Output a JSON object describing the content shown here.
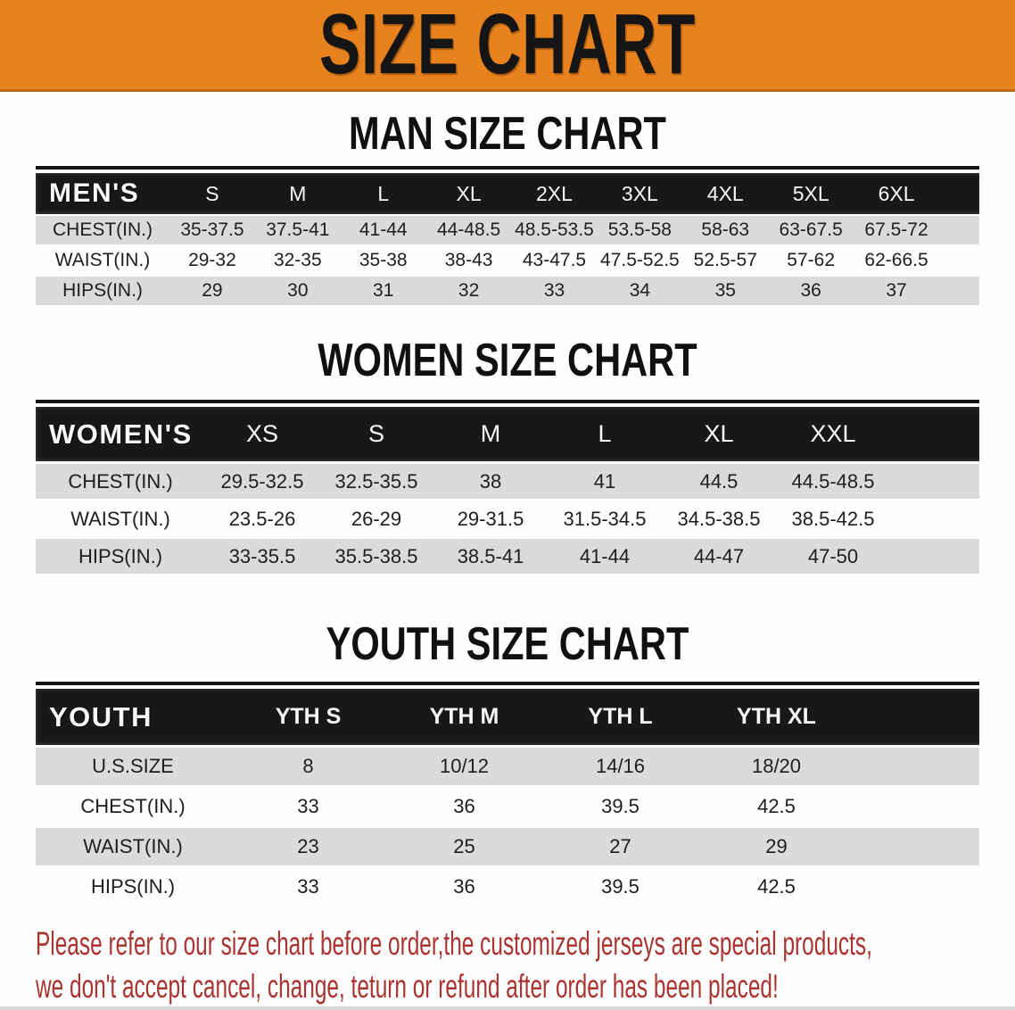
{
  "banner": {
    "title": "SIZE CHART"
  },
  "sections": [
    {
      "heading": "MAN SIZE CHART",
      "table": {
        "header_label": "MEN'S",
        "columns": [
          "S",
          "M",
          "L",
          "XL",
          "2XL",
          "3XL",
          "4XL",
          "5XL",
          "6XL"
        ],
        "rows": [
          {
            "label": "CHEST(IN.)",
            "values": [
              "35-37.5",
              "37.5-41",
              "41-44",
              "44-48.5",
              "48.5-53.5",
              "53.5-58",
              "58-63",
              "63-67.5",
              "67.5-72"
            ]
          },
          {
            "label": "WAIST(IN.)",
            "values": [
              "29-32",
              "32-35",
              "35-38",
              "38-43",
              "43-47.5",
              "47.5-52.5",
              "52.5-57",
              "57-62",
              "62-66.5"
            ]
          },
          {
            "label": "HIPS(IN.)",
            "values": [
              "29",
              "30",
              "31",
              "32",
              "33",
              "34",
              "35",
              "36",
              "37"
            ]
          }
        ]
      }
    },
    {
      "heading": "WOMEN SIZE CHART",
      "table": {
        "header_label": "WOMEN'S",
        "columns": [
          "XS",
          "S",
          "M",
          "L",
          "XL",
          "XXL"
        ],
        "rows": [
          {
            "label": "CHEST(IN.)",
            "values": [
              "29.5-32.5",
              "32.5-35.5",
              "38",
              "41",
              "44.5",
              "44.5-48.5"
            ]
          },
          {
            "label": "WAIST(IN.)",
            "values": [
              "23.5-26",
              "26-29",
              "29-31.5",
              "31.5-34.5",
              "34.5-38.5",
              "38.5-42.5"
            ]
          },
          {
            "label": "HIPS(IN.)",
            "values": [
              "33-35.5",
              "35.5-38.5",
              "38.5-41",
              "41-44",
              "44-47",
              "47-50"
            ]
          }
        ]
      }
    },
    {
      "heading": "YOUTH SIZE CHART",
      "table": {
        "header_label": "YOUTH",
        "columns": [
          "YTH S",
          "YTH M",
          "YTH L",
          "YTH XL"
        ],
        "rows": [
          {
            "label": "U.S.SIZE",
            "values": [
              "8",
              "10/12",
              "14/16",
              "18/20"
            ]
          },
          {
            "label": "CHEST(IN.)",
            "values": [
              "33",
              "36",
              "39.5",
              "42.5"
            ]
          },
          {
            "label": "WAIST(IN.)",
            "values": [
              "23",
              "25",
              "27",
              "29"
            ]
          },
          {
            "label": "HIPS(IN.)",
            "values": [
              "33",
              "36",
              "39.5",
              "42.5"
            ]
          }
        ]
      }
    }
  ],
  "disclaimer": {
    "lines": [
      "Please refer to our size chart before order,the customized jerseys are special products,",
      "we don't accept cancel, change, teturn or refund after order has been placed!"
    ]
  },
  "colors": {
    "banner_bg": "#E8821E",
    "banner_edge": "#C06A16",
    "title_color": "#151515",
    "table_header_bg": "#181818",
    "table_header_text": "#F7F7F7",
    "row_stripe": "#DBDBDB",
    "row_white": "#FEFEFE",
    "text_color": "#1E1E1E",
    "disclaimer_color": "#A93430",
    "page_edge": "#D8D8D8"
  }
}
